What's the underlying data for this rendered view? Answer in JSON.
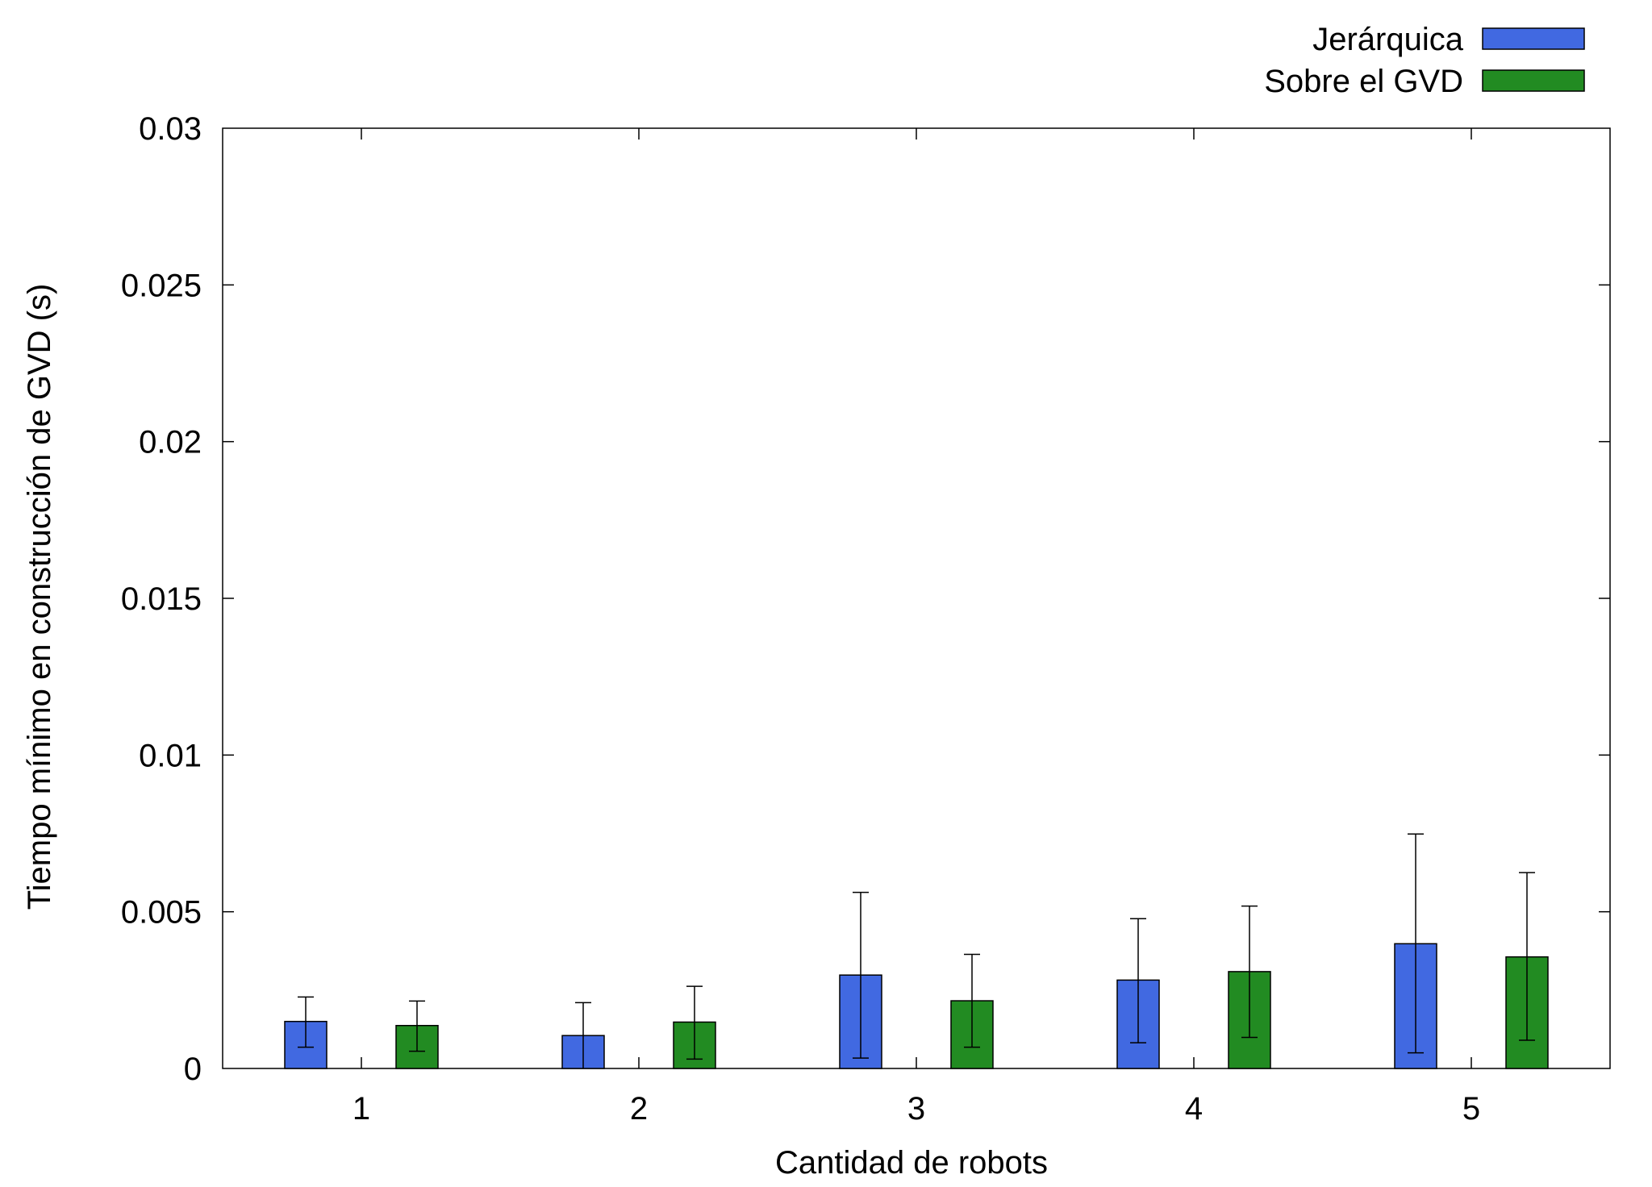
{
  "chart_data": {
    "type": "bar",
    "title": "",
    "xlabel": "Cantidad de robots",
    "ylabel": "Tiempo mínimo en construcción de GVD (s)",
    "categories": [
      "1",
      "2",
      "3",
      "4",
      "5"
    ],
    "ylim": [
      0,
      0.03
    ],
    "yticks": [
      "0",
      "0.005",
      "0.01",
      "0.015",
      "0.02",
      "0.025",
      "0.03"
    ],
    "ytick_values": [
      0,
      0.005,
      0.01,
      0.015,
      0.02,
      0.025,
      0.03
    ],
    "grid": false,
    "legend_position": "top-right",
    "error_bars": true,
    "series": [
      {
        "name": "Jerárquica",
        "color": "#4169e1",
        "values": [
          0.0015,
          0.00105,
          0.00298,
          0.00282,
          0.00398
        ],
        "err_low": [
          0.00068,
          0.0,
          0.00033,
          0.00082,
          0.0005
        ],
        "err_high": [
          0.00228,
          0.0021,
          0.00562,
          0.00478,
          0.00748
        ]
      },
      {
        "name": "Sobre el GVD",
        "color": "#228b22",
        "values": [
          0.00137,
          0.00148,
          0.00216,
          0.00309,
          0.00356
        ],
        "err_low": [
          0.00055,
          0.0003,
          0.00068,
          0.00099,
          0.0009
        ],
        "err_high": [
          0.00215,
          0.00262,
          0.00364,
          0.00518,
          0.00625
        ]
      }
    ]
  }
}
